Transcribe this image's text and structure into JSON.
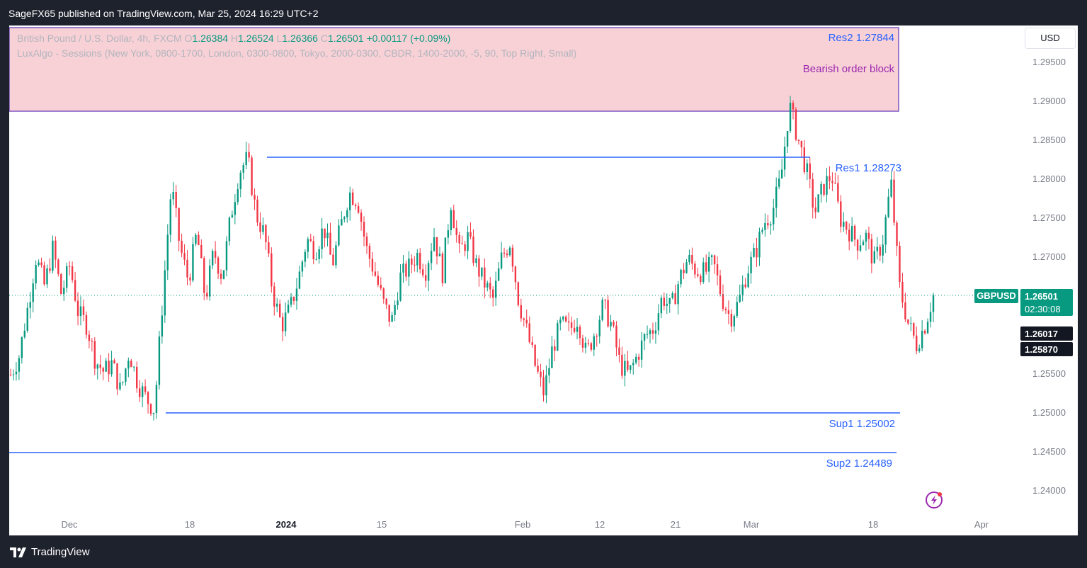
{
  "header": {
    "published": "SageFX65 published on TradingView.com, Mar 25, 2024 16:29 UTC+2"
  },
  "legend": {
    "symbol": "British Pound / U.S. Dollar, 4h, FXCM",
    "o_label": "O",
    "o": "1.26384",
    "h_label": "H",
    "h": "1.26524",
    "l_label": "L",
    "l": "1.26366",
    "c_label": "C",
    "c": "1.26501",
    "change": "+0.00117 (+0.09%)",
    "indicator": "LuxAlgo - Sessions (New York, 0800-1700, London, 0300-0800, Tokyo, 2000-0300, CBDR, 1400-2000, -5, 90, Top Right, Small)"
  },
  "currency_button": "USD",
  "annotations": {
    "res2": "Res2 1.27844",
    "bearish": "Bearish order block",
    "res1": "Res1 1.28273",
    "sup1": "Sup1 1.25002",
    "sup2": "Sup2 1.24489"
  },
  "price_badges": {
    "symbol": "GBPUSD",
    "last": "1.26501",
    "countdown": "02:30:08",
    "level_a": "1.26017",
    "level_b": "1.25870"
  },
  "footer": {
    "brand": "TradingView"
  },
  "colors": {
    "up": "#089981",
    "down": "#f23645",
    "level_line": "#2962ff",
    "order_block": "#f8d1d6",
    "order_block_border": "#7e57c2",
    "badge_green": "#089981"
  },
  "chart_data": {
    "type": "candlestick",
    "symbol": "GBPUSD",
    "timeframe": "4h",
    "ylim": [
      1.236,
      1.3
    ],
    "y_ticks": [
      "1.29500",
      "1.29000",
      "1.28500",
      "1.28000",
      "1.27500",
      "1.27000",
      "1.26500",
      "1.26000",
      "1.25500",
      "1.25000",
      "1.24500",
      "1.24000"
    ],
    "x_ticks": [
      "Dec",
      "18",
      "2024",
      "15",
      "Feb",
      "12",
      "21",
      "Mar",
      "18",
      "Apr"
    ],
    "close_path": [
      1.2548,
      1.2572,
      1.2633,
      1.2699,
      1.2662,
      1.2711,
      1.2651,
      1.2689,
      1.2627,
      1.2612,
      1.2567,
      1.2552,
      1.2563,
      1.2526,
      1.2578,
      1.2538,
      1.2518,
      1.2503,
      1.2651,
      1.2792,
      1.2712,
      1.2669,
      1.2731,
      1.2644,
      1.2707,
      1.2673,
      1.2751,
      1.2809,
      1.2826,
      1.2754,
      1.2727,
      1.2652,
      1.2611,
      1.2632,
      1.2671,
      1.2722,
      1.2707,
      1.2738,
      1.2689,
      1.2739,
      1.2782,
      1.2772,
      1.2711,
      1.2679,
      1.2641,
      1.2615,
      1.2673,
      1.2685,
      1.2703,
      1.2681,
      1.2729,
      1.2677,
      1.2771,
      1.2704,
      1.2724,
      1.2689,
      1.2665,
      1.2645,
      1.2698,
      1.2719,
      1.2644,
      1.2603,
      1.2558,
      1.2524,
      1.2582,
      1.2613,
      1.2605,
      1.2621,
      1.2574,
      1.2603,
      1.2637,
      1.2611,
      1.2561,
      1.2548,
      1.2572,
      1.2598,
      1.2608,
      1.2649,
      1.2632,
      1.2671,
      1.2697,
      1.2682,
      1.2679,
      1.2692,
      1.2648,
      1.2621,
      1.2641,
      1.2682,
      1.2705,
      1.2743,
      1.2758,
      1.2801,
      1.2894,
      1.2852,
      1.2811,
      1.2756,
      1.2789,
      1.2805,
      1.2749,
      1.2734,
      1.2718,
      1.2727,
      1.2692,
      1.2719,
      1.2795,
      1.2661,
      1.2615,
      1.2587,
      1.2612,
      1.265
    ]
  }
}
